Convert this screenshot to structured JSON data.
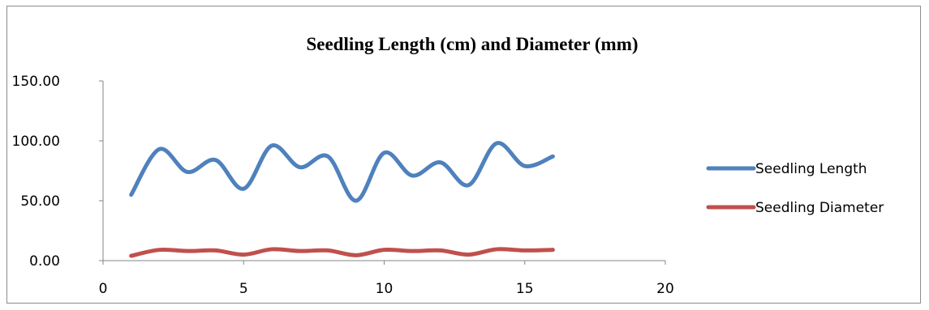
{
  "chart_data": {
    "type": "line",
    "title": "Seedling Length (cm) and Diameter (mm)",
    "xlabel": "",
    "ylabel": "",
    "xlim": [
      0,
      20
    ],
    "ylim": [
      0,
      150
    ],
    "x_ticks": [
      "0",
      "5",
      "10",
      "15",
      "20"
    ],
    "y_ticks": [
      "0.00",
      "50.00",
      "100.00",
      "150.00"
    ],
    "grid": false,
    "smooth": true,
    "legend_position": "right",
    "x": [
      1,
      2,
      3,
      4,
      5,
      6,
      7,
      8,
      9,
      10,
      11,
      12,
      13,
      14,
      15,
      16
    ],
    "series": [
      {
        "name": "Seedling Length",
        "color": "#4f81bd",
        "values": [
          55,
          93,
          74,
          84,
          60,
          96,
          78,
          87,
          50,
          90,
          71,
          82,
          63,
          98,
          79,
          87
        ]
      },
      {
        "name": "Seedling Diameter",
        "color": "#c0504d",
        "values": [
          4,
          9,
          8,
          8.5,
          5,
          9.5,
          8,
          8.5,
          4.5,
          9,
          8,
          8.5,
          5,
          9.5,
          8.5,
          9
        ]
      }
    ]
  }
}
